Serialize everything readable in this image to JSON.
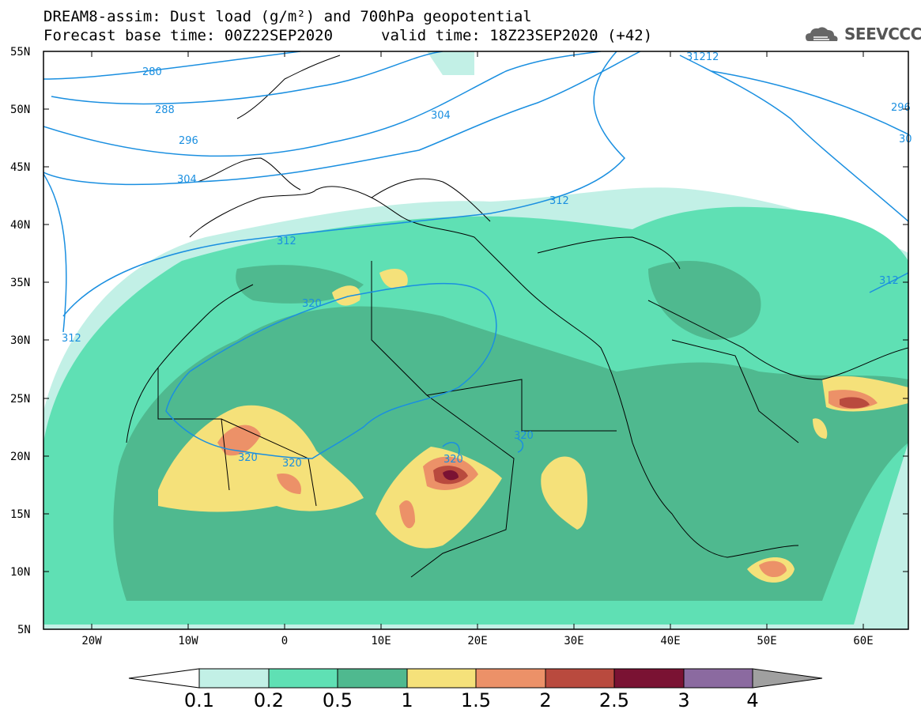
{
  "header": {
    "line1": "DREAM8-assim: Dust load (g/m²) and 700hPa geopotential",
    "line2": "Forecast base time: 00Z22SEP2020",
    "valid": "valid time: 18Z23SEP2020 (+42)",
    "logo_text": "SEEVCCC"
  },
  "map": {
    "lat_labels": [
      "55N",
      "50N",
      "45N",
      "40N",
      "35N",
      "30N",
      "25N",
      "20N",
      "15N",
      "10N",
      "5N"
    ],
    "lon_labels": [
      "20W",
      "10W",
      "0",
      "10E",
      "20E",
      "30E",
      "40E",
      "50E",
      "60E"
    ],
    "contour_labels": [
      "280",
      "288",
      "296",
      "304",
      "304",
      "312",
      "312",
      "312",
      "312",
      "320",
      "320",
      "320",
      "320",
      "320",
      "31212",
      "296",
      "30"
    ],
    "colors": {
      "c01": "#c2f0e6",
      "c02": "#5fe0b4",
      "c05": "#4fb98f",
      "c1": "#f5e17a",
      "c15": "#ec9168",
      "c2": "#b94a3e",
      "c25": "#7a1233",
      "c3": "#8b6aa0",
      "c4": "#a0a0a0",
      "contour": "#1a8fe0"
    }
  },
  "colorbar": {
    "labels": [
      "0.1",
      "0.2",
      "0.5",
      "1",
      "1.5",
      "2",
      "2.5",
      "3",
      "4"
    ],
    "colors": [
      "#c2f0e6",
      "#5fe0b4",
      "#4fb98f",
      "#f5e17a",
      "#ec9168",
      "#b94a3e",
      "#7a1233",
      "#8b6aa0"
    ]
  }
}
